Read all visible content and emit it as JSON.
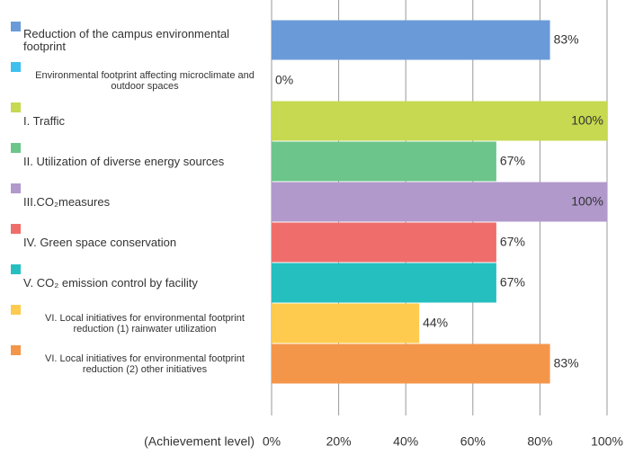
{
  "chart_data": {
    "type": "bar",
    "orientation": "horizontal",
    "categories": [
      "Reduction of the campus environmental footprint",
      "Environmental footprint affecting microclimate and outdoor spaces",
      "I. Traffic",
      "II. Utilization of diverse energy sources",
      "III.CO₂measures",
      "IV. Green space conservation",
      "V. CO₂ emission control by facility",
      "VI. Local initiatives for environmental footprint reduction (1) rainwater utilization",
      "VI. Local initiatives for environmental footprint reduction (2) other initiatives"
    ],
    "values": [
      83,
      0,
      100,
      67,
      100,
      67,
      67,
      44,
      83
    ],
    "value_labels": [
      "83%",
      "0%",
      "100%",
      "67%",
      "100%",
      "67%",
      "67%",
      "44%",
      "83%"
    ],
    "colors": [
      "#6a9bd8",
      "#3fc0ef",
      "#c6d950",
      "#6cc58a",
      "#b199cc",
      "#ef6e6b",
      "#26bfc0",
      "#fecb4f",
      "#f4964a"
    ],
    "xlabel": "(Achievement level)",
    "xlim": [
      0,
      100
    ],
    "xticks": [
      {
        "value": 0,
        "label": "0%"
      },
      {
        "value": 20,
        "label": "20%"
      },
      {
        "value": 40,
        "label": "40%"
      },
      {
        "value": 60,
        "label": "60%"
      },
      {
        "value": 80,
        "label": "80%"
      },
      {
        "value": 100,
        "label": "100%"
      }
    ],
    "grid": true
  }
}
